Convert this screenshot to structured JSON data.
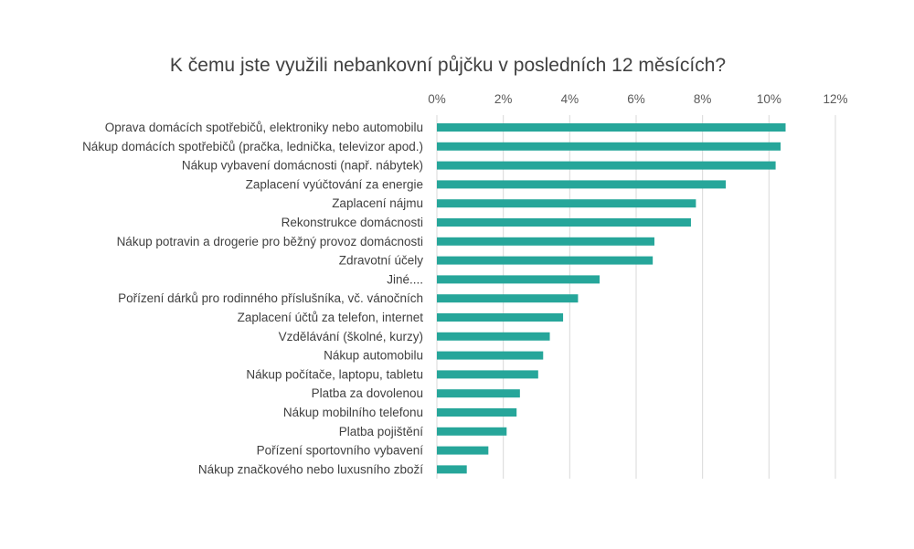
{
  "chart_data": {
    "type": "bar",
    "orientation": "horizontal",
    "title": "K čemu jste využili nebankovní půjčku v posledních 12 měsících?",
    "xlabel": "",
    "ylabel": "",
    "xlim": [
      0,
      12
    ],
    "tick_values": [
      0,
      2,
      4,
      6,
      8,
      10,
      12
    ],
    "tick_labels": [
      "0%",
      "2%",
      "4%",
      "6%",
      "8%",
      "10%",
      "12%"
    ],
    "axis_position": "top",
    "grid": true,
    "bar_color": "#26a69a",
    "categories": [
      "Oprava domácích spotřebičů, elektroniky nebo automobilu",
      "Nákup domácích spotřebičů (pračka, lednička, televizor apod.)",
      "Nákup vybavení domácnosti (např.  nábytek)",
      "Zaplacení vyúčtování za energie",
      "Zaplacení nájmu",
      "Rekonstrukce domácnosti",
      "Nákup potravin a drogerie pro běžný provoz domácnosti",
      "Zdravotní účely",
      "Jiné....",
      "Pořízení dárků pro rodinného příslušníka, vč. vánočních",
      "Zaplacení účtů za telefon, internet",
      "Vzdělávání (školné, kurzy)",
      "Nákup automobilu",
      "Nákup počítače, laptopu, tabletu",
      "Platba za dovolenou",
      "Nákup mobilního telefonu",
      "Platba pojištění",
      "Pořízení sportovního vybavení",
      "Nákup značkového nebo luxusního zboží"
    ],
    "values": [
      10.5,
      10.35,
      10.2,
      8.7,
      7.8,
      7.65,
      6.55,
      6.5,
      4.9,
      4.25,
      3.8,
      3.4,
      3.2,
      3.05,
      2.5,
      2.4,
      2.1,
      1.55,
      0.9
    ]
  }
}
